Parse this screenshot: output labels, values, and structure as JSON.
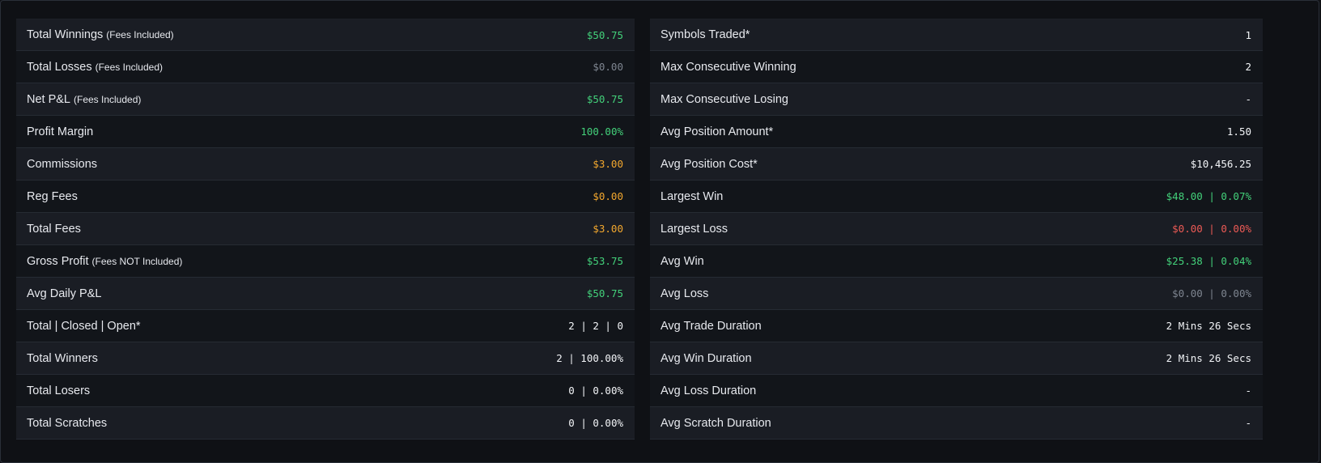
{
  "left": [
    {
      "label": "Total Winnings",
      "sub": "(Fees Included)",
      "value": "$50.75",
      "color": "green"
    },
    {
      "label": "Total Losses",
      "sub": "(Fees Included)",
      "value": "$0.00",
      "color": "gray"
    },
    {
      "label": "Net P&L",
      "sub": "(Fees Included)",
      "value": "$50.75",
      "color": "green"
    },
    {
      "label": "Profit Margin",
      "sub": "",
      "value": "100.00%",
      "color": "green"
    },
    {
      "label": "Commissions",
      "sub": "",
      "value": "$3.00",
      "color": "orange"
    },
    {
      "label": "Reg Fees",
      "sub": "",
      "value": "$0.00",
      "color": "orange"
    },
    {
      "label": "Total Fees",
      "sub": "",
      "value": "$3.00",
      "color": "orange"
    },
    {
      "label": "Gross Profit",
      "sub": "(Fees NOT Included)",
      "value": "$53.75",
      "color": "green"
    },
    {
      "label": "Avg Daily P&L",
      "sub": "",
      "value": "$50.75",
      "color": "green"
    },
    {
      "label": "Total | Closed | Open*",
      "sub": "",
      "value": "2 | 2 | 0",
      "color": "white"
    },
    {
      "label": "Total Winners",
      "sub": "",
      "value": "2 | 100.00%",
      "color": "white"
    },
    {
      "label": "Total Losers",
      "sub": "",
      "value": "0 | 0.00%",
      "color": "white"
    },
    {
      "label": "Total Scratches",
      "sub": "",
      "value": "0 | 0.00%",
      "color": "white"
    }
  ],
  "right": [
    {
      "label": "Symbols Traded*",
      "sub": "",
      "value": "1",
      "color": "white"
    },
    {
      "label": "Max Consecutive Winning",
      "sub": "",
      "value": "2",
      "color": "white"
    },
    {
      "label": "Max Consecutive Losing",
      "sub": "",
      "value": "-",
      "color": "white"
    },
    {
      "label": "Avg Position Amount*",
      "sub": "",
      "value": "1.50",
      "color": "white"
    },
    {
      "label": "Avg Position Cost*",
      "sub": "",
      "value": "$10,456.25",
      "color": "white"
    },
    {
      "label": "Largest Win",
      "sub": "",
      "value": "$48.00 | 0.07%",
      "color": "green"
    },
    {
      "label": "Largest Loss",
      "sub": "",
      "value": "$0.00 | 0.00%",
      "color": "red"
    },
    {
      "label": "Avg Win",
      "sub": "",
      "value": "$25.38 | 0.04%",
      "color": "green"
    },
    {
      "label": "Avg Loss",
      "sub": "",
      "value": "$0.00 | 0.00%",
      "color": "gray"
    },
    {
      "label": "Avg Trade Duration",
      "sub": "",
      "value": "2 Mins 26 Secs",
      "color": "white"
    },
    {
      "label": "Avg Win Duration",
      "sub": "",
      "value": "2 Mins 26 Secs",
      "color": "white"
    },
    {
      "label": "Avg Loss Duration",
      "sub": "",
      "value": "-",
      "color": "white"
    },
    {
      "label": "Avg Scratch Duration",
      "sub": "",
      "value": "-",
      "color": "white"
    }
  ],
  "colors": {
    "green": "#43d17a",
    "gray": "#7e8590",
    "orange": "#f2a72e",
    "white": "#f2f4f7",
    "red": "#ec5a55",
    "row_odd": "#1a1d24",
    "row_even": "#12151a",
    "page_bg": "#0f1115"
  }
}
